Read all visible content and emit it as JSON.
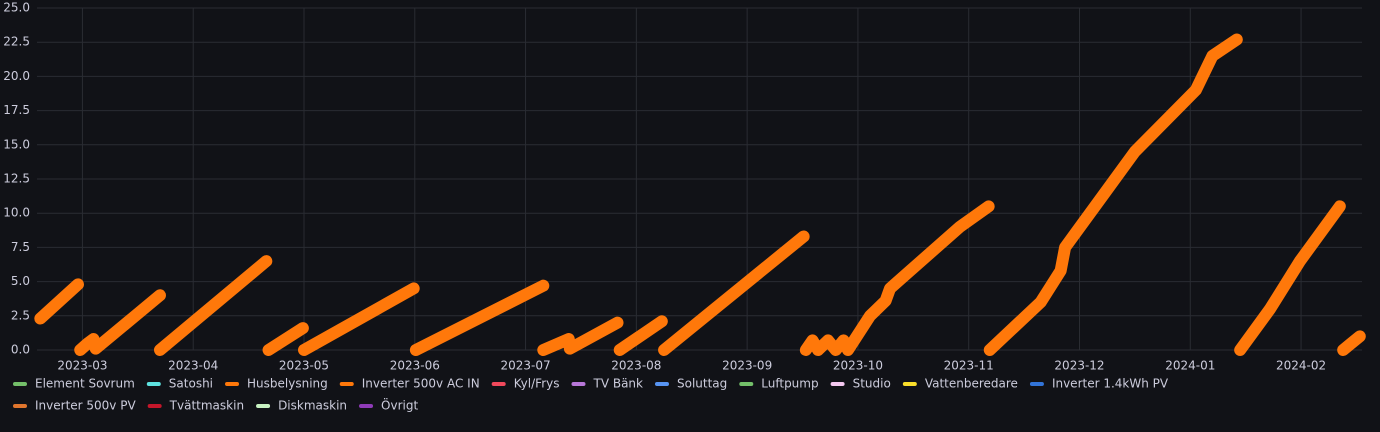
{
  "chart_data": {
    "type": "line",
    "x": [
      2.62,
      2.96,
      null,
      2.98,
      3.05,
      3.1,
      3.12,
      3.7,
      null,
      3.7,
      4.66,
      null,
      4.68,
      4.99,
      null,
      5.0,
      5.99,
      null,
      6.01,
      7.16,
      null,
      7.16,
      7.39,
      7.4,
      7.83,
      null,
      7.85,
      8.23,
      null,
      8.25,
      9.51,
      null,
      9.53,
      9.59,
      9.64,
      9.73,
      9.8,
      9.87,
      9.91,
      10.11,
      10.25,
      10.29,
      10.43,
      10.92,
      11.18,
      null,
      11.19,
      11.65,
      11.83,
      11.87,
      11.96,
      12.23,
      12.5,
      13.05,
      13.2,
      13.42,
      null,
      13.45,
      13.72,
      13.99,
      14.35,
      null,
      14.38,
      14.44,
      14.53
    ],
    "series": [
      {
        "name": "Element Sovrum",
        "color": "#73bf69"
      },
      {
        "name": "Satoshi",
        "color": "#5ee2e0"
      },
      {
        "name": "Husbelysning",
        "color": "#ff780a",
        "values": [
          2.3,
          4.8,
          null,
          0.0,
          0.5,
          0.8,
          0.1,
          4.0,
          null,
          0.0,
          6.5,
          null,
          0.0,
          1.6,
          null,
          0.0,
          4.5,
          null,
          0.0,
          4.7,
          null,
          0.0,
          0.8,
          0.1,
          2.0,
          null,
          0.0,
          2.1,
          null,
          0.0,
          8.3,
          null,
          0.0,
          0.7,
          0.0,
          0.7,
          0.0,
          0.7,
          0.0,
          2.5,
          3.6,
          4.5,
          5.5,
          9.0,
          10.5,
          null,
          0.0,
          3.5,
          5.8,
          7.5,
          8.5,
          11.5,
          14.5,
          19.0,
          21.5,
          22.7,
          null,
          0.0,
          3.0,
          6.5,
          10.5,
          null,
          0.0,
          0.4,
          1.0
        ]
      },
      {
        "name": "Inverter 500v AC IN",
        "color": "#ff780a"
      },
      {
        "name": "Kyl/Frys",
        "color": "#f2495c"
      },
      {
        "name": "TV Bänk",
        "color": "#b877d9"
      },
      {
        "name": "Soluttag",
        "color": "#5794f2"
      },
      {
        "name": "Luftpump",
        "color": "#73bf69"
      },
      {
        "name": "Studio",
        "color": "#f5c8f0"
      },
      {
        "name": "Vattenberedare",
        "color": "#fade2a"
      },
      {
        "name": "Inverter 1.4kWh PV",
        "color": "#3274d9"
      },
      {
        "name": "Inverter 500v PV",
        "color": "#e0752d"
      },
      {
        "name": "Tvättmaskin",
        "color": "#c4162a"
      },
      {
        "name": "Diskmaskin",
        "color": "#c8f2c2"
      },
      {
        "name": "Övrigt",
        "color": "#8f3bb8"
      }
    ],
    "xlim": [
      2.59,
      14.55
    ],
    "xticks": [
      {
        "value": 3,
        "label": "2023-03"
      },
      {
        "value": 4,
        "label": "2023-04"
      },
      {
        "value": 5,
        "label": "2023-05"
      },
      {
        "value": 6,
        "label": "2023-06"
      },
      {
        "value": 7,
        "label": "2023-07"
      },
      {
        "value": 8,
        "label": "2023-08"
      },
      {
        "value": 9,
        "label": "2023-09"
      },
      {
        "value": 10,
        "label": "2023-10"
      },
      {
        "value": 11,
        "label": "2023-11"
      },
      {
        "value": 12,
        "label": "2023-12"
      },
      {
        "value": 13,
        "label": "2024-01"
      },
      {
        "value": 14,
        "label": "2024-02"
      }
    ],
    "ylim": [
      0,
      25
    ],
    "yticks": [
      {
        "value": 0,
        "label": "0.0"
      },
      2.5,
      {
        "value": 5,
        "label": "5.0"
      },
      7.5,
      {
        "value": 10,
        "label": "10.0"
      },
      12.5,
      {
        "value": 15,
        "label": "15.0"
      },
      17.5,
      {
        "value": 20,
        "label": "20.0"
      },
      22.5,
      {
        "value": 25,
        "label": "25.0"
      }
    ],
    "grid": true
  }
}
